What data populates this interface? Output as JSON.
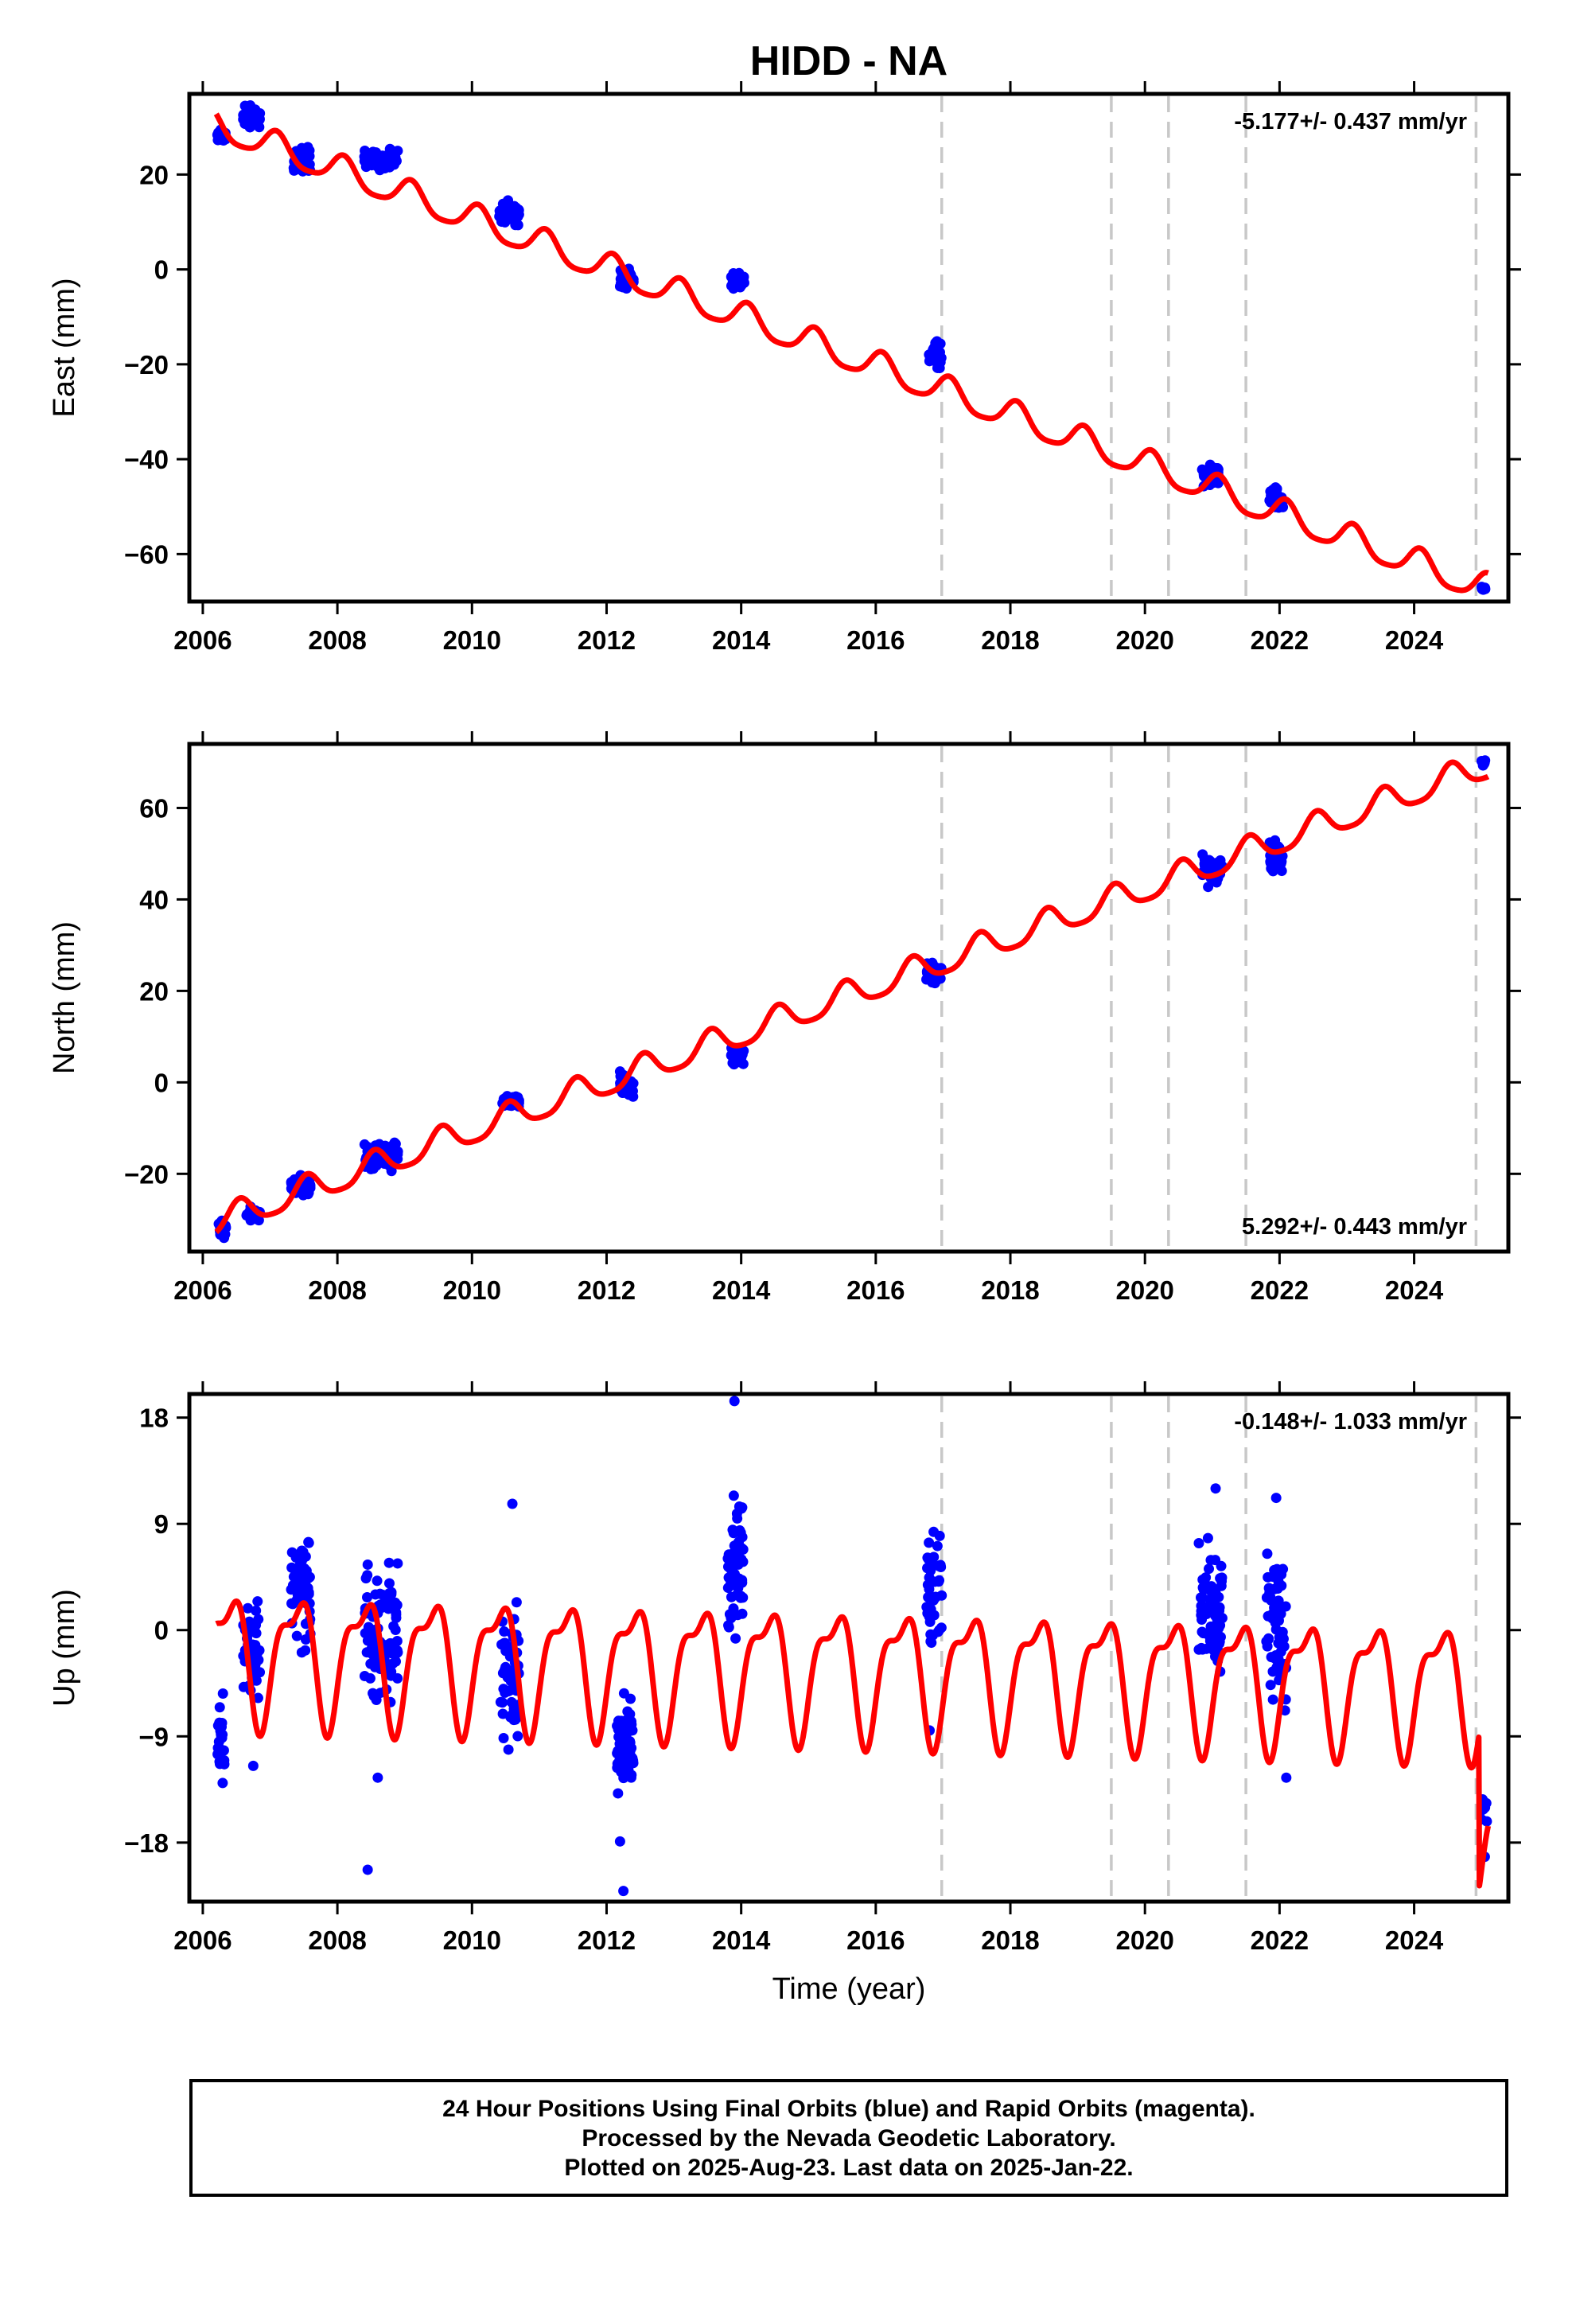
{
  "title": "HIDD - NA",
  "footer": {
    "line1": "24 Hour Positions Using Final Orbits (blue) and Rapid Orbits (magenta).",
    "line2": "Processed by the Nevada Geodetic Laboratory.",
    "line3": "Plotted on 2025-Aug-23. Last data on 2025-Jan-22."
  },
  "colors": {
    "observations": "#0000ff",
    "model": "#ff0000",
    "events": "#c8c8c8"
  },
  "chart_data": [
    {
      "type": "scatter",
      "component": "east",
      "ylabel": "East (mm)",
      "xlabel": "",
      "rate_label": "-5.177+/- 0.437 mm/yr",
      "rate_position": "top-right",
      "xlim": [
        2005.8,
        2025.4
      ],
      "ylim": [
        -70,
        37
      ],
      "xticks": [
        2006,
        2008,
        2010,
        2012,
        2014,
        2016,
        2018,
        2020,
        2022,
        2024
      ],
      "yticks": [
        -60,
        -40,
        -20,
        0,
        20
      ],
      "ytick_labels": [
        "−60",
        "−40",
        "−20",
        "0",
        "20"
      ],
      "event_lines": [
        2016.98,
        2019.5,
        2020.35,
        2021.5,
        2024.92
      ],
      "model": {
        "name": "model",
        "rate": -5.177,
        "t0": 2006.25,
        "offset": 30.0,
        "amp_annual": 3.0,
        "phase_annual": 1.0,
        "amp_semi": 0.6,
        "phase_semi": 0.3,
        "steps": []
      },
      "clusters": [
        {
          "t": [
            2006.2,
            2006.35
          ],
          "y": [
            26.5,
            30.0
          ],
          "n": 24
        },
        {
          "t": [
            2006.6,
            2006.85
          ],
          "y": [
            29.0,
            35.0
          ],
          "n": 44
        },
        {
          "t": [
            2007.35,
            2007.6
          ],
          "y": [
            19.0,
            27.0
          ],
          "n": 54
        },
        {
          "t": [
            2008.4,
            2008.9
          ],
          "y": [
            20.0,
            26.0
          ],
          "n": 90
        },
        {
          "t": [
            2010.4,
            2010.7
          ],
          "y": [
            9.0,
            15.0
          ],
          "n": 46
        },
        {
          "t": [
            2012.2,
            2012.4
          ],
          "y": [
            -5.0,
            1.5
          ],
          "n": 38
        },
        {
          "t": [
            2013.85,
            2014.05
          ],
          "y": [
            -5.0,
            0.0
          ],
          "n": 36
        },
        {
          "t": [
            2016.78,
            2016.98
          ],
          "y": [
            -22.0,
            -14.0
          ],
          "n": 34
        },
        {
          "t": [
            2020.85,
            2021.1
          ],
          "y": [
            -47.0,
            -40.0
          ],
          "n": 40
        },
        {
          "t": [
            2021.85,
            2022.05
          ],
          "y": [
            -52.0,
            -45.0
          ],
          "n": 36
        },
        {
          "t": [
            2025.0,
            2025.06
          ],
          "y": [
            -68.0,
            -66.0
          ],
          "n": 8
        }
      ]
    },
    {
      "type": "scatter",
      "component": "north",
      "ylabel": "North (mm)",
      "xlabel": "",
      "rate_label": "5.292+/- 0.443 mm/yr",
      "rate_position": "bottom-right",
      "xlim": [
        2005.8,
        2025.4
      ],
      "ylim": [
        -37,
        74
      ],
      "xticks": [
        2006,
        2008,
        2010,
        2012,
        2014,
        2016,
        2018,
        2020,
        2022,
        2024
      ],
      "yticks": [
        -20,
        0,
        20,
        40,
        60
      ],
      "ytick_labels": [
        "−20",
        "0",
        "20",
        "40",
        "60"
      ],
      "event_lines": [
        2016.98,
        2019.5,
        2020.35,
        2021.5,
        2024.92
      ],
      "model": {
        "name": "model",
        "rate": 5.292,
        "t0": 2006.25,
        "offset": -30.5,
        "amp_annual": 3.0,
        "phase_annual": 4.4,
        "amp_semi": 0.6,
        "phase_semi": 1.0,
        "steps": []
      },
      "clusters": [
        {
          "t": [
            2006.22,
            2006.35
          ],
          "y": [
            -35.0,
            -29.0
          ],
          "n": 24
        },
        {
          "t": [
            2006.65,
            2006.85
          ],
          "y": [
            -31.0,
            -27.0
          ],
          "n": 36
        },
        {
          "t": [
            2007.3,
            2007.6
          ],
          "y": [
            -26.0,
            -19.0
          ],
          "n": 54
        },
        {
          "t": [
            2008.4,
            2008.9
          ],
          "y": [
            -20.0,
            -12.0
          ],
          "n": 80
        },
        {
          "t": [
            2010.45,
            2010.7
          ],
          "y": [
            -6.0,
            -2.0
          ],
          "n": 40
        },
        {
          "t": [
            2012.2,
            2012.4
          ],
          "y": [
            -5.0,
            3.0
          ],
          "n": 38
        },
        {
          "t": [
            2013.85,
            2014.05
          ],
          "y": [
            3.0,
            9.0
          ],
          "n": 34
        },
        {
          "t": [
            2016.75,
            2016.98
          ],
          "y": [
            20.0,
            28.0
          ],
          "n": 34
        },
        {
          "t": [
            2020.85,
            2021.15
          ],
          "y": [
            41.0,
            51.0
          ],
          "n": 44
        },
        {
          "t": [
            2021.85,
            2022.05
          ],
          "y": [
            45.0,
            54.0
          ],
          "n": 38
        },
        {
          "t": [
            2025.0,
            2025.06
          ],
          "y": [
            68.0,
            72.0
          ],
          "n": 8
        }
      ]
    },
    {
      "type": "scatter",
      "component": "up",
      "ylabel": "Up (mm)",
      "xlabel": "Time (year)",
      "rate_label": "-0.148+/- 1.033 mm/yr",
      "rate_position": "top-right",
      "xlim": [
        2005.8,
        2025.4
      ],
      "ylim": [
        -23,
        20
      ],
      "xticks": [
        2006,
        2008,
        2010,
        2012,
        2014,
        2016,
        2018,
        2020,
        2022,
        2024
      ],
      "yticks": [
        -18,
        -9,
        0,
        9,
        18
      ],
      "ytick_labels": [
        "−18",
        "−9",
        "0",
        "9",
        "18"
      ],
      "event_lines": [
        2016.98,
        2019.5,
        2020.35,
        2021.5,
        2024.92
      ],
      "model": {
        "name": "model",
        "rate": -0.148,
        "t0": 2006.25,
        "offset": -2.0,
        "amp_annual": 5.0,
        "phase_annual": 5.5,
        "amp_semi": 2.0,
        "phase_semi": 0.5,
        "steps": [
          {
            "t": 2024.96,
            "dy": -13.0
          }
        ]
      },
      "clusters": [
        {
          "t": [
            2006.22,
            2006.32
          ],
          "y": [
            -15.0,
            -3.5
          ],
          "n": 24
        },
        {
          "t": [
            2006.6,
            2006.85
          ],
          "y": [
            -8.0,
            4.0
          ],
          "n": 40
        },
        {
          "t": [
            2007.3,
            2007.6
          ],
          "y": [
            -3.0,
            10.5
          ],
          "n": 60
        },
        {
          "t": [
            2008.4,
            2008.9
          ],
          "y": [
            -7.0,
            7.0
          ],
          "n": 100
        },
        {
          "t": [
            2010.4,
            2010.7
          ],
          "y": [
            -12.0,
            4.0
          ],
          "n": 60
        },
        {
          "t": [
            2012.15,
            2012.4
          ],
          "y": [
            -16.0,
            -3.0
          ],
          "n": 70
        },
        {
          "t": [
            2013.8,
            2014.05
          ],
          "y": [
            -2.0,
            13.0
          ],
          "n": 60
        },
        {
          "t": [
            2016.75,
            2016.98
          ],
          "y": [
            -4.0,
            12.0
          ],
          "n": 40
        },
        {
          "t": [
            2020.8,
            2021.15
          ],
          "y": [
            -6.0,
            9.0
          ],
          "n": 70
        },
        {
          "t": [
            2021.8,
            2022.1
          ],
          "y": [
            -9.0,
            9.0
          ],
          "n": 60
        },
        {
          "t": [
            2025.0,
            2025.08
          ],
          "y": [
            -20.0,
            -12.0
          ],
          "n": 8
        }
      ],
      "outliers": [
        {
          "t": 2006.75,
          "y": -11.5
        },
        {
          "t": 2008.45,
          "y": -20.3
        },
        {
          "t": 2008.6,
          "y": -12.5
        },
        {
          "t": 2010.6,
          "y": 10.7
        },
        {
          "t": 2012.25,
          "y": -22.1
        },
        {
          "t": 2012.2,
          "y": -17.9
        },
        {
          "t": 2013.9,
          "y": 19.4
        },
        {
          "t": 2016.8,
          "y": -8.5
        },
        {
          "t": 2021.05,
          "y": 12.0
        },
        {
          "t": 2021.95,
          "y": 11.2
        },
        {
          "t": 2022.1,
          "y": -12.5
        },
        {
          "t": 2025.05,
          "y": -19.2
        }
      ]
    }
  ]
}
